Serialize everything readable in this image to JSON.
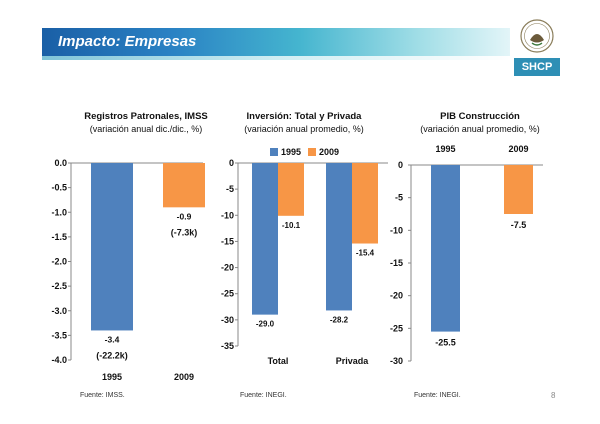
{
  "header": {
    "title": "Impacto: Empresas",
    "badge": "SHCP"
  },
  "page_number": "8",
  "footnotes": [
    "Fuente: IMSS.",
    "Fuente: INEGI.",
    "Fuente: INEGI."
  ],
  "colors": {
    "series_1995": "#4f81bd",
    "series_2009": "#f79646"
  },
  "chart_data": [
    {
      "type": "bar",
      "title": "Registros Patronales, IMSS",
      "subtitle": "(variación anual dic./dic., %)",
      "categories": [
        "1995",
        "2009"
      ],
      "series": [
        {
          "values": [
            -3.4,
            -0.9
          ]
        }
      ],
      "data_labels": [
        "-3.4",
        "-0.9"
      ],
      "extra_labels": [
        "(-22.2k)",
        "(-7.3k)"
      ],
      "ylim": [
        -4.0,
        0.0
      ],
      "yticks": [
        "0.0",
        "-0.5",
        "-1.0",
        "-1.5",
        "-2.0",
        "-2.5",
        "-3.0",
        "-3.5",
        "-4.0"
      ],
      "grid": false
    },
    {
      "type": "bar",
      "title": "Inversión: Total y Privada",
      "subtitle": "(variación anual promedio, %)",
      "categories": [
        "Total",
        "Privada"
      ],
      "series": [
        {
          "name": "1995",
          "values": [
            -29.0,
            -28.2
          ]
        },
        {
          "name": "2009",
          "values": [
            -10.1,
            -15.4
          ]
        }
      ],
      "data_labels": [
        [
          "-29.0",
          "-28.2"
        ],
        [
          "-10.1",
          "-15.4"
        ]
      ],
      "ylim": [
        -35,
        0
      ],
      "yticks": [
        "0",
        "-5",
        "-10",
        "-15",
        "-20",
        "-25",
        "-30",
        "-35"
      ],
      "legend": "top",
      "grid": false
    },
    {
      "type": "bar",
      "title": "PIB Construcción",
      "subtitle": "(variación anual promedio, %)",
      "categories": [
        "1995",
        "2009"
      ],
      "series": [
        {
          "values": [
            -25.5,
            -7.5
          ]
        }
      ],
      "data_labels": [
        "-25.5",
        "-7.5"
      ],
      "ylim": [
        -30,
        0
      ],
      "yticks": [
        "0",
        "-5",
        "-10",
        "-15",
        "-20",
        "-25",
        "-30"
      ],
      "grid": false
    }
  ]
}
